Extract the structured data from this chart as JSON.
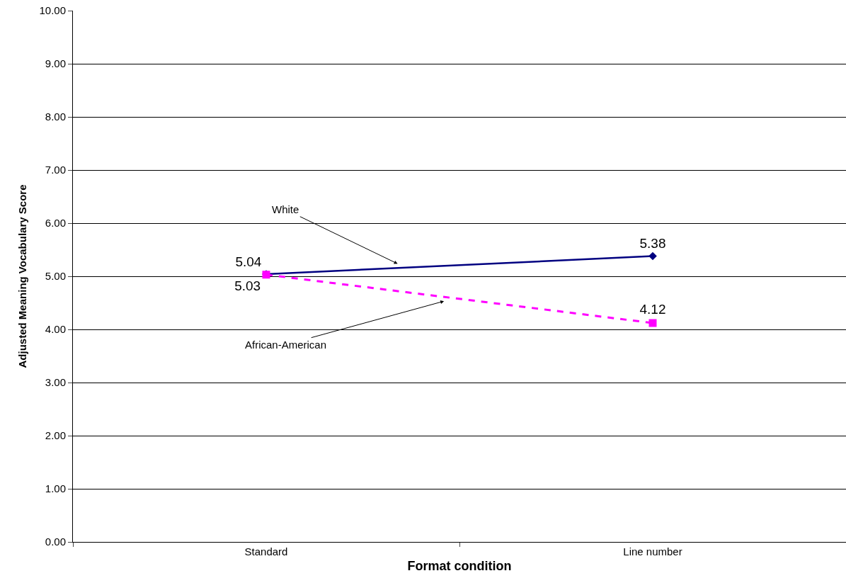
{
  "chart_data": {
    "type": "line",
    "xlabel": "Format condition",
    "ylabel": "Adjusted Meaning Vocabulary Score",
    "categories": [
      "Standard",
      "Line number"
    ],
    "series": [
      {
        "name": "White",
        "color": "#000080",
        "values": [
          5.04,
          5.38
        ],
        "marker": "diamond",
        "line_style": "solid"
      },
      {
        "name": "African-American",
        "color": "#ff00ff",
        "values": [
          5.03,
          4.12
        ],
        "marker": "square",
        "line_style": "dashed"
      }
    ],
    "ylim": [
      0,
      10
    ],
    "yticks": [
      {
        "value": 0,
        "label": "0.00"
      },
      {
        "value": 1,
        "label": "1.00"
      },
      {
        "value": 2,
        "label": "2.00"
      },
      {
        "value": 3,
        "label": "3.00"
      },
      {
        "value": 4,
        "label": "4.00"
      },
      {
        "value": 5,
        "label": "5.00"
      },
      {
        "value": 6,
        "label": "6.00"
      },
      {
        "value": 7,
        "label": "7.00"
      },
      {
        "value": 8,
        "label": "8.00"
      },
      {
        "value": 9,
        "label": "9.00"
      },
      {
        "value": 10,
        "label": "10.00"
      }
    ],
    "grid": "y",
    "legend": false,
    "data_labels": true
  }
}
